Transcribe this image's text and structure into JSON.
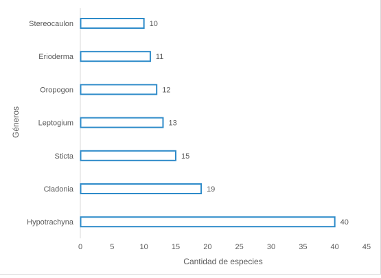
{
  "chart_data": {
    "type": "bar",
    "orientation": "horizontal",
    "categories": [
      "Stereocaulon",
      "Erioderma",
      "Oropogon",
      "Leptogium",
      "Sticta",
      "Cladonia",
      "Hypotrachyna"
    ],
    "values": [
      10,
      11,
      12,
      13,
      15,
      19,
      40
    ],
    "data_labels": [
      "10",
      "11",
      "12",
      "13",
      "15",
      "19",
      "40"
    ],
    "xlabel": "Cantidad de especies",
    "ylabel": "Géneros",
    "xlim": [
      0,
      45
    ],
    "xticks": [
      "0",
      "5",
      "10",
      "15",
      "20",
      "25",
      "30",
      "35",
      "40",
      "45"
    ],
    "grid": false,
    "legend": "none",
    "colors": {
      "bar_stroke": "#2e8bc9",
      "bar_fill": "#ffffff",
      "text": "#595959",
      "axis": "#d9d9d9"
    }
  }
}
